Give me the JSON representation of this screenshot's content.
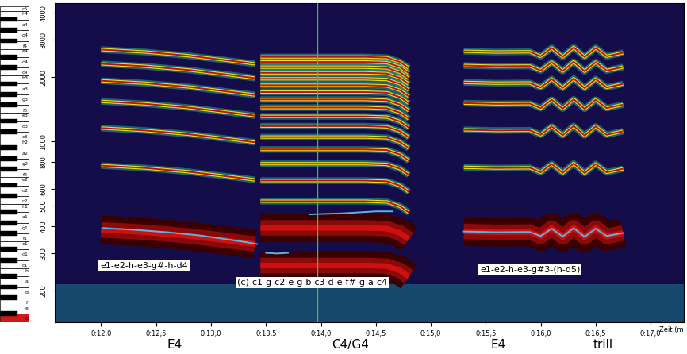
{
  "chart_data": {
    "type": "spectrogram",
    "log": "y",
    "grid": false,
    "x_label": "Zeit (m",
    "xlim": [
      11.58,
      17.3
    ],
    "xticks": [
      {
        "value": 12.0,
        "label": "0:12,0"
      },
      {
        "value": 12.5,
        "label": "0:12,5"
      },
      {
        "value": 13.0,
        "label": "0:13,0"
      },
      {
        "value": 13.5,
        "label": "0:13,5"
      },
      {
        "value": 14.0,
        "label": "0:14,0"
      },
      {
        "value": 14.5,
        "label": "0:14,5"
      },
      {
        "value": 15.0,
        "label": "0:15,0"
      },
      {
        "value": 15.5,
        "label": "0:15,5"
      },
      {
        "value": 16.0,
        "label": "0:16,0"
      },
      {
        "value": 16.5,
        "label": "0:16,5"
      },
      {
        "value": 17.0,
        "label": "0:17,0"
      }
    ],
    "ylim": [
      142,
      4430
    ],
    "yticks": [
      200,
      300,
      400,
      500,
      600,
      800,
      1000,
      2000,
      3000,
      4000
    ],
    "cursor": 13.97,
    "segments": [
      {
        "annotation": "e1-e2-h-e3-g#-h-d4",
        "labels": [
          "E4"
        ],
        "x": [
          12.0,
          12.4,
          12.8,
          13.2,
          13.4
        ],
        "f0": [
          385,
          375,
          360,
          340,
          330
        ],
        "harmonics": [
          1,
          2,
          3,
          4,
          5,
          6,
          7
        ],
        "strong": [
          1
        ],
        "pitch": {
          "x": [
            12.02,
            12.3,
            12.6,
            12.9,
            13.1,
            13.3,
            13.42
          ],
          "values": [
            392,
            385,
            375,
            362,
            350,
            338,
            330
          ]
        }
      },
      {
        "annotation": "(c)-c1-g-c2-e-g-b-c3-d-e-f#-g-a-c4",
        "labels": [
          "C4/G4"
        ],
        "x": [
          13.45,
          13.6,
          14.0,
          14.4,
          14.6,
          14.72,
          14.8
        ],
        "f0": [
          131,
          131,
          131,
          131,
          130,
          124,
          116
        ],
        "harmonics": [
          2,
          3,
          4,
          5,
          6,
          7,
          8,
          9,
          10,
          11,
          12,
          13,
          14,
          15,
          16,
          17,
          18,
          19
        ],
        "strong": [
          2,
          3
        ],
        "pitch": {
          "x": [
            13.5,
            13.6,
            13.7,
            13.8,
            13.9,
            14.2,
            14.5,
            14.65
          ],
          "values": [
            300,
            298,
            300,
            null,
            455,
            460,
            470,
            470
          ]
        }
      },
      {
        "annotation": "e1-e2-h-e3-g#3-(h-d5)",
        "labels": [
          "E4",
          "trill"
        ],
        "x": [
          15.3,
          15.6,
          15.9,
          16.0,
          16.1,
          16.2,
          16.3,
          16.4,
          16.5,
          16.6,
          16.75
        ],
        "f0": [
          378,
          375,
          376,
          358,
          392,
          356,
          394,
          355,
          392,
          358,
          372
        ],
        "harmonics": [
          1,
          2,
          3,
          4,
          5,
          6,
          7
        ],
        "strong": [
          1
        ],
        "pitch": {
          "x": [
            15.3,
            15.6,
            15.9,
            16.0,
            16.1,
            16.2,
            16.3,
            16.4,
            16.5,
            16.6,
            16.75
          ],
          "values": [
            378,
            375,
            376,
            360,
            390,
            358,
            392,
            357,
            390,
            360,
            372
          ]
        }
      }
    ],
    "keyboard": [
      {
        "label": "d",
        "freq": 147
      },
      {
        "label": "e",
        "freq": 165
      },
      {
        "label": "f",
        "freq": 175
      },
      {
        "label": "g",
        "freq": 196
      },
      {
        "label": "a",
        "freq": 220
      },
      {
        "label": "h",
        "freq": 247
      },
      {
        "label": "c1",
        "freq": 262
      },
      {
        "label": "d1",
        "freq": 294
      },
      {
        "label": "e1",
        "freq": 330
      },
      {
        "label": "f1",
        "freq": 349
      },
      {
        "label": "g1",
        "freq": 392
      },
      {
        "label": "a1",
        "freq": 440
      },
      {
        "label": "h1",
        "freq": 494
      },
      {
        "label": "c2",
        "freq": 523
      },
      {
        "label": "d2",
        "freq": 587
      },
      {
        "label": "e2",
        "freq": 659
      },
      {
        "label": "f2",
        "freq": 698
      },
      {
        "label": "g2",
        "freq": 784
      },
      {
        "label": "a2",
        "freq": 880
      },
      {
        "label": "h2",
        "freq": 988
      },
      {
        "label": "c3",
        "freq": 1047
      },
      {
        "label": "d3",
        "freq": 1175
      },
      {
        "label": "e3",
        "freq": 1319
      },
      {
        "label": "f3",
        "freq": 1397
      },
      {
        "label": "g3",
        "freq": 1568
      },
      {
        "label": "a3",
        "freq": 1760
      },
      {
        "label": "h3",
        "freq": 1976
      },
      {
        "label": "c4",
        "freq": 2093
      },
      {
        "label": "d4",
        "freq": 2349
      },
      {
        "label": "e4",
        "freq": 2637
      },
      {
        "label": "f4",
        "freq": 2794
      },
      {
        "label": "g4",
        "freq": 3136
      },
      {
        "label": "a4",
        "freq": 3520
      },
      {
        "label": "h4",
        "freq": 3951
      },
      {
        "label": "c5",
        "freq": 4186
      }
    ],
    "highlight_key": "d"
  }
}
